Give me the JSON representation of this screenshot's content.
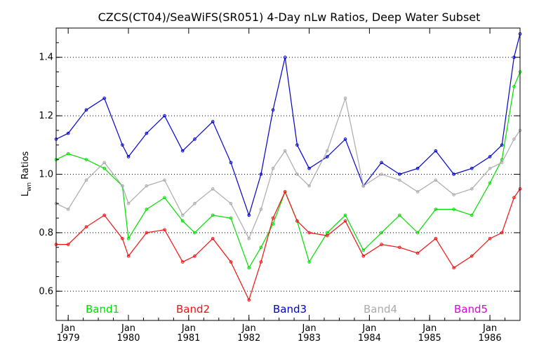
{
  "chart_data": {
    "type": "line",
    "title": "CZCS(CT04)/SeaWiFS(SR051) 4-Day nLw Ratios, Deep Water Subset",
    "ylabel_main": "L",
    "ylabel_sub": "wn",
    "ylabel_rest": " Ratios",
    "xlim": [
      1978.8,
      1986.5
    ],
    "ylim": [
      0.5,
      1.5
    ],
    "y_ticks": [
      {
        "value": 0.6,
        "label": "0.6"
      },
      {
        "value": 0.8,
        "label": "0.8"
      },
      {
        "value": 1.0,
        "label": "1.0"
      },
      {
        "value": 1.2,
        "label": "1.2"
      },
      {
        "value": 1.4,
        "label": "1.4"
      }
    ],
    "x_ticks": [
      {
        "value": 1979,
        "month": "Jan",
        "year": "1979"
      },
      {
        "value": 1980,
        "month": "Jan",
        "year": "1980"
      },
      {
        "value": 1981,
        "month": "Jan",
        "year": "1981"
      },
      {
        "value": 1982,
        "month": "Jan",
        "year": "1982"
      },
      {
        "value": 1983,
        "month": "Jan",
        "year": "1983"
      },
      {
        "value": 1984,
        "month": "Jan",
        "year": "1984"
      },
      {
        "value": 1985,
        "month": "Jan",
        "year": "1985"
      },
      {
        "value": 1986,
        "month": "Jan",
        "year": "1986"
      }
    ],
    "grid": "horizontal-dotted",
    "legend_position": "bottom-inside",
    "series": [
      {
        "name": "Band1",
        "color": "#00dd00",
        "x": [
          1978.8,
          1979.0,
          1979.3,
          1979.6,
          1979.9,
          1980.0,
          1980.3,
          1980.6,
          1980.9,
          1981.1,
          1981.4,
          1981.7,
          1982.0,
          1982.2,
          1982.4,
          1982.6,
          1982.8,
          1983.0,
          1983.3,
          1983.6,
          1983.9,
          1984.2,
          1984.5,
          1984.8,
          1985.1,
          1985.4,
          1985.7,
          1986.0,
          1986.2,
          1986.4,
          1986.5
        ],
        "y": [
          1.05,
          1.07,
          1.05,
          1.02,
          0.96,
          0.78,
          0.88,
          0.92,
          0.84,
          0.8,
          0.86,
          0.85,
          0.68,
          0.75,
          0.83,
          0.94,
          0.84,
          0.7,
          0.8,
          0.86,
          0.74,
          0.8,
          0.86,
          0.8,
          0.88,
          0.88,
          0.86,
          0.97,
          1.05,
          1.3,
          1.35
        ]
      },
      {
        "name": "Band2",
        "color": "#ee1111",
        "x": [
          1978.8,
          1979.0,
          1979.3,
          1979.6,
          1979.9,
          1980.0,
          1980.3,
          1980.6,
          1980.9,
          1981.1,
          1981.4,
          1981.7,
          1982.0,
          1982.2,
          1982.4,
          1982.6,
          1982.8,
          1983.0,
          1983.3,
          1983.6,
          1983.9,
          1984.2,
          1984.5,
          1984.8,
          1985.1,
          1985.4,
          1985.7,
          1986.0,
          1986.2,
          1986.4,
          1986.5
        ],
        "y": [
          0.76,
          0.76,
          0.82,
          0.86,
          0.78,
          0.72,
          0.8,
          0.81,
          0.7,
          0.72,
          0.78,
          0.7,
          0.57,
          0.7,
          0.85,
          0.94,
          0.84,
          0.8,
          0.79,
          0.84,
          0.72,
          0.76,
          0.75,
          0.73,
          0.78,
          0.68,
          0.72,
          0.78,
          0.8,
          0.92,
          0.95
        ]
      },
      {
        "name": "Band3",
        "color": "#0000cc",
        "x": [
          1978.8,
          1979.0,
          1979.3,
          1979.6,
          1979.9,
          1980.0,
          1980.3,
          1980.6,
          1980.9,
          1981.1,
          1981.4,
          1981.7,
          1982.0,
          1982.2,
          1982.4,
          1982.6,
          1982.8,
          1983.0,
          1983.3,
          1983.6,
          1983.9,
          1984.2,
          1984.5,
          1984.8,
          1985.1,
          1985.4,
          1985.7,
          1986.0,
          1986.2,
          1986.4,
          1986.5
        ],
        "y": [
          1.12,
          1.14,
          1.22,
          1.26,
          1.1,
          1.06,
          1.14,
          1.2,
          1.08,
          1.12,
          1.18,
          1.04,
          0.86,
          1.0,
          1.22,
          1.4,
          1.1,
          1.02,
          1.06,
          1.12,
          0.96,
          1.04,
          1.0,
          1.02,
          1.08,
          1.0,
          1.02,
          1.06,
          1.1,
          1.4,
          1.48
        ]
      },
      {
        "name": "Band4",
        "color": "#aaaaaa",
        "x": [
          1978.8,
          1979.0,
          1979.3,
          1979.6,
          1979.9,
          1980.0,
          1980.3,
          1980.6,
          1980.9,
          1981.1,
          1981.4,
          1981.7,
          1982.0,
          1982.2,
          1982.4,
          1982.6,
          1982.8,
          1983.0,
          1983.3,
          1983.6,
          1983.9,
          1984.2,
          1984.5,
          1984.8,
          1985.1,
          1985.4,
          1985.7,
          1986.0,
          1986.2,
          1986.4,
          1986.5
        ],
        "y": [
          0.9,
          0.88,
          0.98,
          1.04,
          0.96,
          0.9,
          0.96,
          0.98,
          0.86,
          0.9,
          0.95,
          0.9,
          0.78,
          0.88,
          1.02,
          1.08,
          1.0,
          0.96,
          1.08,
          1.26,
          0.96,
          1.0,
          0.98,
          0.94,
          0.98,
          0.93,
          0.95,
          1.02,
          1.04,
          1.12,
          1.15
        ]
      },
      {
        "name": "Band5",
        "color": "#dd00dd",
        "x": [],
        "y": []
      }
    ]
  }
}
